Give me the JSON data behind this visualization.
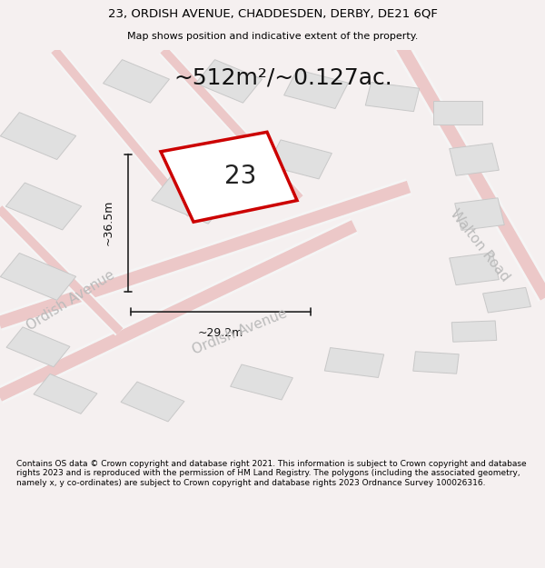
{
  "title_line1": "23, ORDISH AVENUE, CHADDESDEN, DERBY, DE21 6QF",
  "title_line2": "Map shows position and indicative extent of the property.",
  "area_text": "~512m²/~0.127ac.",
  "number_label": "23",
  "dim_height": "~36.5m",
  "dim_width": "~29.2m",
  "street_label_1": "Ordish Avenue",
  "street_label_2": "Ordish Avenue",
  "street_label_3": "Walton Road",
  "footer_text": "Contains OS data © Crown copyright and database right 2021. This information is subject to Crown copyright and database rights 2023 and is reproduced with the permission of HM Land Registry. The polygons (including the associated geometry, namely x, y co-ordinates) are subject to Crown copyright and database rights 2023 Ordnance Survey 100026316.",
  "bg_color": "#f5f0f0",
  "map_bg_color": "#ffffff",
  "road_fill_color": "#e8e8e8",
  "road_line_color": "#d0d0d0",
  "building_fill_color": "#e0e0e0",
  "building_line_color": "#c0c0c0",
  "plot_line_color": "#cc0000",
  "plot_fill_color": "#ffffff",
  "street_text_color": "#bbbbbb",
  "dim_line_color": "#222222",
  "dim_text_color": "#222222",
  "title_fontsize": 9,
  "subtitle_fontsize": 8,
  "area_fontsize": 18,
  "label_fontsize": 18,
  "dim_fontsize": 9,
  "street_fontsize": 11,
  "footer_fontsize": 6.5,
  "red_lines": [
    [
      [
        0.08,
        0.85
      ],
      [
        0.18,
        0.6
      ]
    ],
    [
      [
        0.18,
        0.6
      ],
      [
        0.32,
        0.4
      ]
    ],
    [
      [
        0.32,
        0.4
      ],
      [
        0.55,
        0.38
      ]
    ],
    [
      [
        0.55,
        0.38
      ],
      [
        0.62,
        0.55
      ]
    ],
    [
      [
        0.62,
        0.55
      ],
      [
        0.48,
        0.78
      ]
    ],
    [
      [
        0.48,
        0.78
      ],
      [
        0.28,
        0.82
      ]
    ],
    [
      [
        0.28,
        0.82
      ],
      [
        0.08,
        0.85
      ]
    ]
  ]
}
